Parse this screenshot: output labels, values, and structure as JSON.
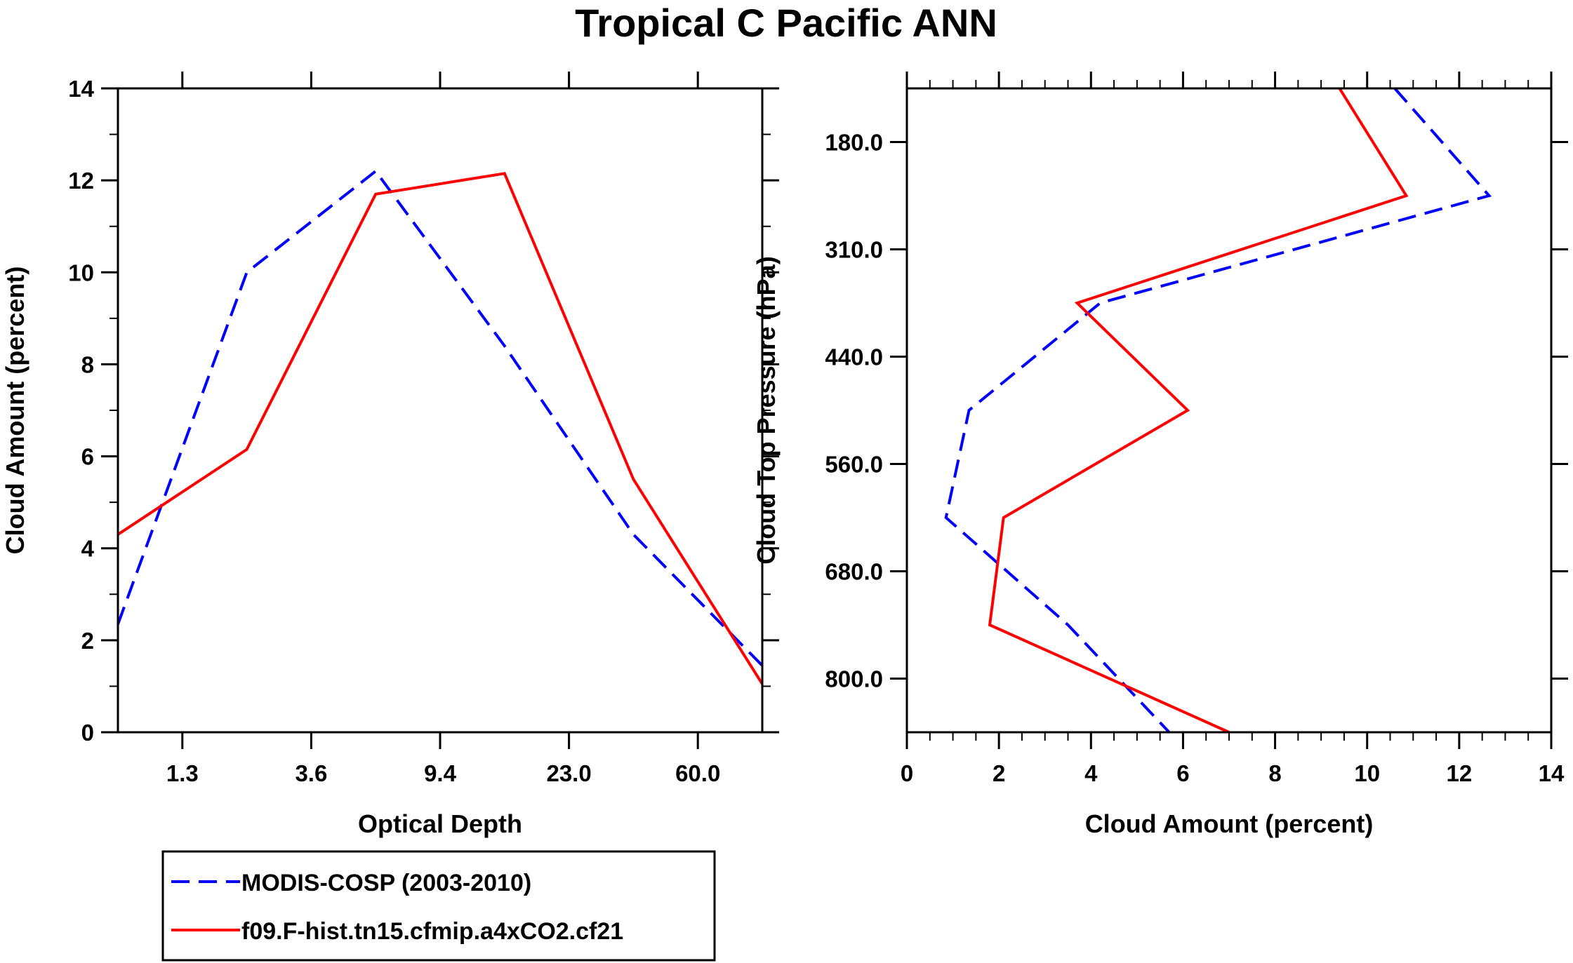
{
  "figure": {
    "title": "Tropical C Pacific ANN"
  },
  "chart_data": [
    {
      "type": "line",
      "panel": "left",
      "xlabel": "Optical Depth",
      "ylabel": "Cloud Amount (percent)",
      "x_tick_labels": [
        "1.3",
        "3.6",
        "9.4",
        "23.0",
        "60.0"
      ],
      "x_tick_positions": [
        1,
        3,
        5,
        7,
        9
      ],
      "xlim": [
        0,
        10
      ],
      "y_ticks": [
        "0",
        "2",
        "4",
        "6",
        "8",
        "10",
        "12",
        "14"
      ],
      "ylim": [
        0,
        14
      ],
      "x": [
        0,
        2,
        4,
        6,
        8,
        10
      ],
      "series": [
        {
          "name": "MODIS-COSP (2003-2010)",
          "color": "#0000ff",
          "dash": "dashed",
          "values": [
            2.35,
            10.0,
            12.2,
            8.4,
            4.3,
            1.45
          ]
        },
        {
          "name": "f09.F-hist.tn15.cfmip.a4xCO2.cf21",
          "color": "#ff0000",
          "dash": "solid",
          "values": [
            4.3,
            6.15,
            11.7,
            12.15,
            5.5,
            1.05
          ]
        }
      ]
    },
    {
      "type": "line",
      "panel": "right",
      "xlabel": "Cloud Amount (percent)",
      "ylabel": "Cloud Top Pressure (hPa)",
      "x_ticks": [
        "0",
        "2",
        "4",
        "6",
        "8",
        "10",
        "12",
        "14"
      ],
      "xlim": [
        0,
        14
      ],
      "y_tick_labels": [
        "180.0",
        "310.0",
        "440.0",
        "560.0",
        "680.0",
        "800.0"
      ],
      "y_tick_positions": [
        1,
        3,
        5,
        7,
        9,
        11
      ],
      "ylim": [
        0,
        12
      ],
      "y": [
        0,
        2,
        4,
        6,
        8,
        10,
        12
      ],
      "series": [
        {
          "name": "MODIS-COSP (2003-2010)",
          "color": "#0000ff",
          "dash": "dashed",
          "values": [
            10.6,
            12.65,
            4.2,
            1.35,
            0.85,
            3.5,
            5.7
          ]
        },
        {
          "name": "f09.F-hist.tn15.cfmip.a4xCO2.cf21",
          "color": "#ff0000",
          "dash": "solid",
          "values": [
            9.4,
            10.85,
            3.7,
            6.1,
            2.1,
            1.8,
            7.0
          ]
        }
      ]
    }
  ],
  "legend": {
    "entries": [
      {
        "label": "MODIS-COSP (2003-2010)",
        "color": "#0000ff",
        "dash": "dashed"
      },
      {
        "label": "f09.F-hist.tn15.cfmip.a4xCO2.cf21",
        "color": "#ff0000",
        "dash": "solid"
      }
    ]
  }
}
